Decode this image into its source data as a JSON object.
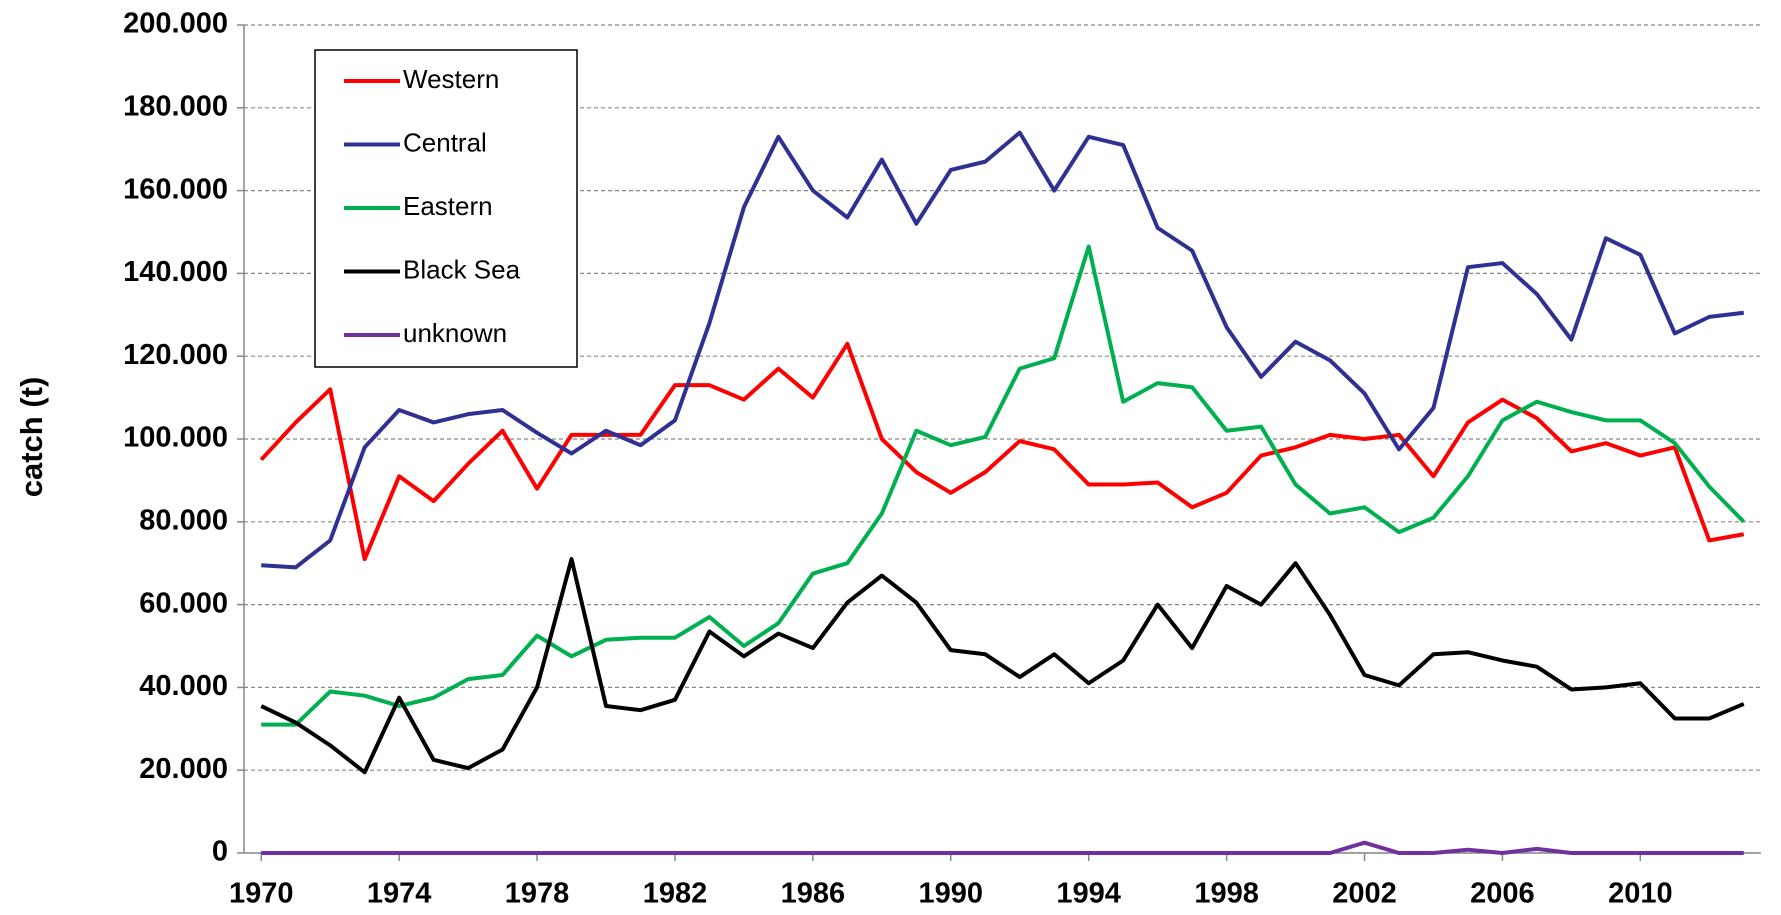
{
  "chart_data": {
    "type": "line",
    "y_label": "catch (t)",
    "x": [
      1970,
      1971,
      1972,
      1973,
      1974,
      1975,
      1976,
      1977,
      1978,
      1979,
      1980,
      1981,
      1982,
      1983,
      1984,
      1985,
      1986,
      1987,
      1988,
      1989,
      1990,
      1991,
      1992,
      1993,
      1994,
      1995,
      1996,
      1997,
      1998,
      1999,
      2000,
      2001,
      2002,
      2003,
      2004,
      2005,
      2006,
      2007,
      2008,
      2009,
      2010,
      2011,
      2012,
      2013
    ],
    "series": [
      {
        "name": "Western",
        "color": "#ff0000",
        "values": [
          95000,
          104000,
          112000,
          71000,
          91000,
          85000,
          94000,
          102000,
          88000,
          101000,
          101000,
          101000,
          113000,
          113000,
          109500,
          117000,
          110000,
          123000,
          100000,
          92000,
          87000,
          92000,
          99500,
          97500,
          89000,
          89000,
          89500,
          83500,
          87000,
          96000,
          98000,
          101000,
          100000,
          101000,
          91000,
          104000,
          109500,
          105000,
          97000,
          99000,
          96000,
          98000,
          75500,
          77000
        ]
      },
      {
        "name": "Central",
        "color": "#2e3192",
        "values": [
          69500,
          69000,
          75500,
          98000,
          107000,
          104000,
          106000,
          107000,
          101500,
          96500,
          102000,
          98500,
          104500,
          128000,
          156000,
          173000,
          160000,
          153500,
          167500,
          152000,
          165000,
          167000,
          174000,
          160000,
          173000,
          171000,
          151000,
          145500,
          127000,
          115000,
          123500,
          119000,
          111000,
          97500,
          107500,
          141500,
          142500,
          135000,
          124000,
          148500,
          144500,
          125500,
          129500,
          130500
        ]
      },
      {
        "name": "Eastern",
        "color": "#00b050",
        "values": [
          31000,
          31000,
          39000,
          38000,
          35500,
          37500,
          42000,
          43000,
          52500,
          47500,
          51500,
          52000,
          52000,
          57000,
          50000,
          55500,
          67500,
          70000,
          82000,
          102000,
          98500,
          100500,
          117000,
          119500,
          146500,
          109000,
          113500,
          112500,
          102000,
          103000,
          89000,
          82000,
          83500,
          77500,
          81000,
          91000,
          104500,
          109000,
          106500,
          104500,
          104500,
          99000,
          88500,
          80000
        ]
      },
      {
        "name": "Black Sea",
        "color": "#000000",
        "values": [
          35500,
          31500,
          26000,
          19500,
          37500,
          22500,
          20500,
          25000,
          40000,
          71000,
          35500,
          34500,
          37000,
          53500,
          47500,
          53000,
          49500,
          60500,
          67000,
          60500,
          49000,
          48000,
          42500,
          48000,
          41000,
          46500,
          60000,
          49500,
          64500,
          60000,
          70000,
          57500,
          43000,
          40500,
          48000,
          48500,
          46500,
          45000,
          39500,
          40000,
          41000,
          32500,
          32500,
          36000
        ]
      },
      {
        "name": "unknown",
        "color": "#7030a0",
        "values": [
          0,
          0,
          0,
          0,
          0,
          0,
          0,
          0,
          0,
          0,
          0,
          0,
          0,
          0,
          0,
          0,
          0,
          0,
          0,
          0,
          0,
          0,
          0,
          0,
          0,
          0,
          0,
          0,
          0,
          0,
          0,
          0,
          2500,
          0,
          0,
          800,
          0,
          1000,
          0,
          0,
          0,
          0,
          0,
          0
        ]
      }
    ],
    "xlim": [
      1969.5,
      2013.5
    ],
    "xticks": [
      1970,
      1974,
      1978,
      1982,
      1986,
      1990,
      1994,
      1998,
      2002,
      2006,
      2010
    ],
    "ylim": [
      0,
      200000
    ],
    "yticks": [
      0,
      {
        "value": 20000,
        "label": "20.000"
      },
      {
        "value": 40000,
        "label": "40.000"
      },
      {
        "value": 60000,
        "label": "60.000"
      },
      {
        "value": 80000,
        "label": "80.000"
      },
      {
        "value": 100000,
        "label": "100.000"
      },
      {
        "value": 120000,
        "label": "120.000"
      },
      {
        "value": 140000,
        "label": "140.000"
      },
      {
        "value": 160000,
        "label": "160.000"
      },
      {
        "value": 180000,
        "label": "180.000"
      },
      {
        "value": 200000,
        "label": "200.000"
      }
    ],
    "grid": true,
    "legend": "upper left"
  }
}
